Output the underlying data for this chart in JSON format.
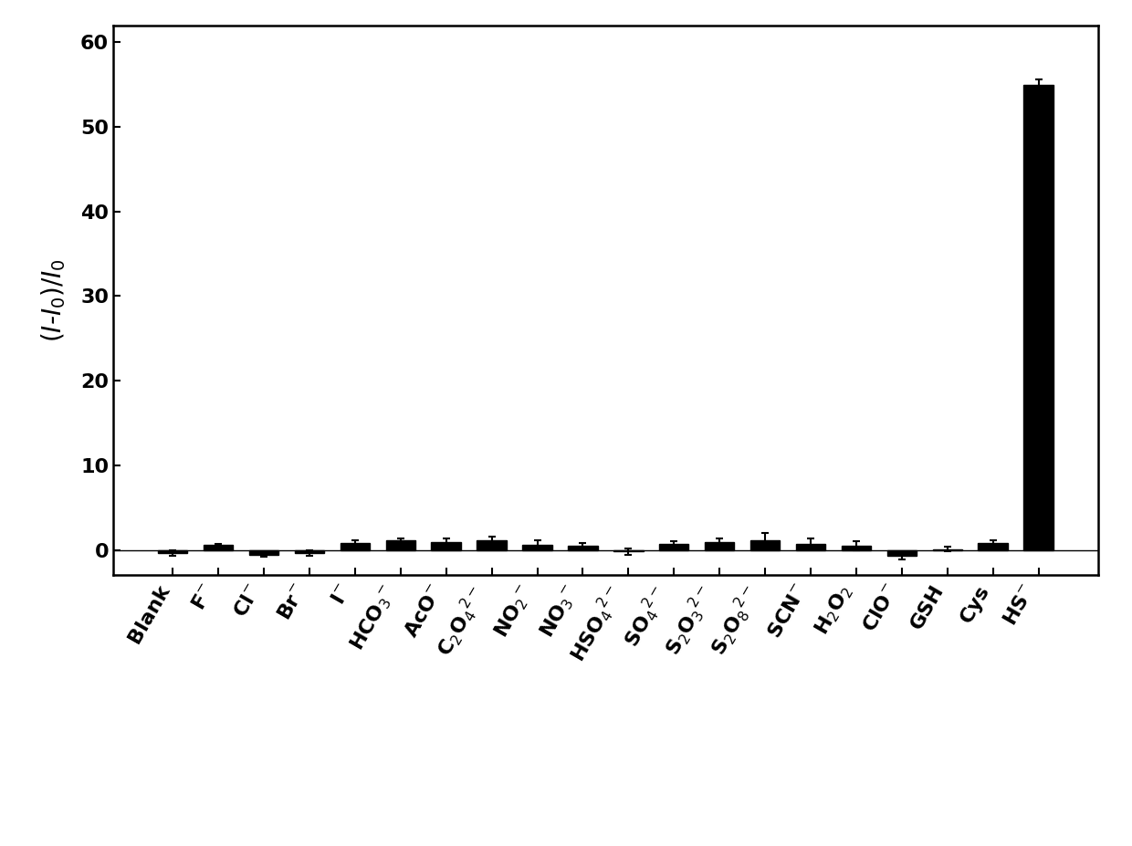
{
  "categories": [
    "Blank",
    "F$^{-}$",
    "Cl$^{-}$",
    "Br$^{-}$",
    "I$^{-}$",
    "HCO$_{3}$$^{-}$",
    "AcO$^{-}$",
    "C$_{2}$O$_{4}$$^{2-}$",
    "NO$_{2}$$^{-}$",
    "NO$_{3}$$^{-}$",
    "HSO$_{4}$$^{2-}$",
    "SO$_{4}$$^{2-}$",
    "S$_{2}$O$_{3}$$^{2-}$",
    "S$_{2}$O$_{8}$$^{2-}$",
    "SCN$^{-}$",
    "H$_{2}$O$_{2}$",
    "ClO$^{-}$",
    "GSH",
    "Cys",
    "HS$^{-}$"
  ],
  "values": [
    -0.35,
    0.55,
    -0.55,
    -0.35,
    0.85,
    1.15,
    0.9,
    1.1,
    0.65,
    0.45,
    -0.2,
    0.75,
    0.9,
    1.1,
    0.7,
    0.5,
    -0.7,
    0.1,
    0.8,
    55.0
  ],
  "errors": [
    0.3,
    0.2,
    0.25,
    0.35,
    0.3,
    0.25,
    0.45,
    0.45,
    0.5,
    0.4,
    0.35,
    0.3,
    0.5,
    0.85,
    0.6,
    0.5,
    0.4,
    0.25,
    0.35,
    0.65
  ],
  "bar_color": "#000000",
  "error_color": "#000000",
  "ylabel": "$(\\mathit{I}$-$\\mathit{I}_0)/\\mathit{I}_0$",
  "ylim": [
    -3,
    62
  ],
  "yticks": [
    0,
    10,
    20,
    30,
    40,
    50,
    60
  ],
  "background_color": "#ffffff",
  "bar_width": 0.65,
  "ylabel_fontsize": 20,
  "tick_fontsize": 16,
  "xlabel_rotation": 60,
  "xlabel_ha": "right"
}
